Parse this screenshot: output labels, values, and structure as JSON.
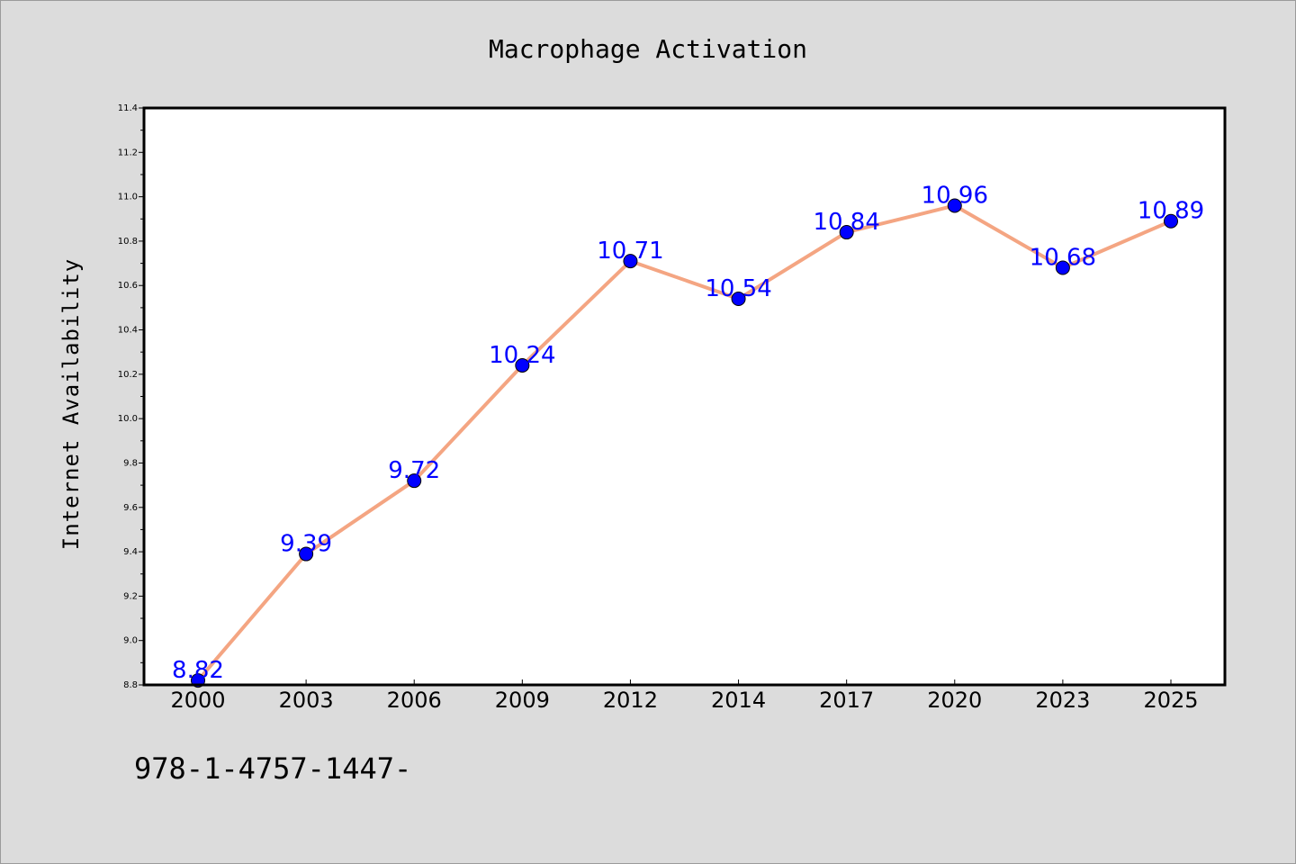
{
  "chart_data": {
    "type": "line",
    "title": "Macrophage Activation",
    "xlabel": "",
    "ylabel": "Internet Availability",
    "categories": [
      "2000",
      "2003",
      "2006",
      "2009",
      "2012",
      "2014",
      "2017",
      "2020",
      "2023",
      "2025"
    ],
    "series": [
      {
        "values": [
          8.82,
          9.39,
          9.72,
          10.24,
          10.71,
          10.54,
          10.84,
          10.96,
          10.68,
          10.89
        ]
      }
    ],
    "data_labels": [
      "8.82",
      "9.39",
      "9.72",
      "10.24",
      "10.71",
      "10.54",
      "10.84",
      "10.96",
      "10.68",
      "10.89"
    ],
    "ylim": [
      8.8,
      11.4
    ],
    "yticks": [
      "8.8",
      "9.0",
      "9.2",
      "9.4",
      "9.6",
      "9.8",
      "10.0",
      "10.2",
      "10.4",
      "10.6",
      "10.8",
      "11.0",
      "11.2",
      "11.4"
    ],
    "grid": false,
    "legend": "none",
    "colors": {
      "line": "#f4a582",
      "marker": "#0000ff",
      "label": "#0000ff",
      "background": "#dcdcdc",
      "plot_bg": "#ffffff"
    }
  },
  "footer_text": "978-1-4757-1447-"
}
